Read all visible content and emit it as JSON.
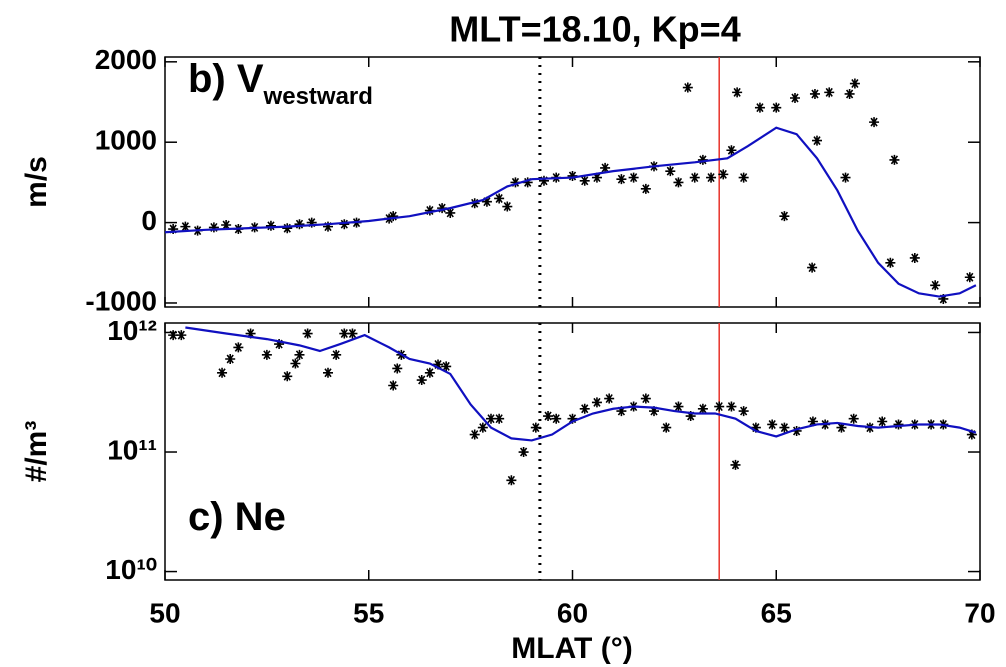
{
  "title": "MLT=18.10, Kp=4",
  "xlabel": "MLAT (°)",
  "chart_data": [
    {
      "type": "scatter",
      "label": "b) V",
      "label_sub": "westward",
      "ylabel": "m/s",
      "xlim": [
        50,
        70
      ],
      "xticks": [
        50,
        55,
        60,
        65,
        70
      ],
      "ylim": [
        -1050,
        2060
      ],
      "yticks": [
        -1000,
        0,
        1000,
        2000
      ],
      "log": false,
      "vlines": [
        {
          "x": 59.2,
          "color": "#000000",
          "dash": true
        },
        {
          "x": 63.6,
          "color": "#e8322a",
          "dash": false
        }
      ],
      "series": [
        {
          "type": "scatter",
          "color": "#000000",
          "x": [
            50.2,
            50.5,
            50.8,
            51.2,
            51.5,
            51.8,
            52.2,
            52.6,
            53.0,
            53.3,
            53.6,
            54.0,
            54.4,
            54.7,
            55.5,
            55.6,
            56.5,
            56.8,
            57.0,
            57.6,
            57.9,
            58.2,
            58.4,
            58.6,
            58.9,
            59.3,
            59.6,
            60.0,
            60.3,
            60.6,
            60.8,
            61.2,
            61.5,
            61.8,
            62.0,
            62.4,
            62.6,
            62.83,
            63.0,
            63.2,
            63.4,
            63.7,
            63.9,
            64.04,
            64.2,
            64.6,
            65.0,
            65.2,
            65.46,
            65.88,
            65.95,
            66.0,
            66.3,
            66.7,
            66.8,
            66.93,
            67.4,
            67.8,
            67.9,
            68.4,
            68.9,
            69.1,
            69.75
          ],
          "values": [
            -80,
            -50,
            -100,
            -60,
            -30,
            -80,
            -60,
            -40,
            -70,
            -20,
            0,
            -50,
            -20,
            0,
            50,
            80,
            150,
            180,
            120,
            240,
            260,
            300,
            200,
            500,
            500,
            520,
            560,
            580,
            520,
            560,
            680,
            540,
            560,
            420,
            700,
            640,
            500,
            1680,
            560,
            780,
            560,
            600,
            900,
            1620,
            560,
            1430,
            1430,
            80,
            1550,
            -560,
            1600,
            1020,
            1620,
            560,
            1600,
            1730,
            1250,
            -500,
            780,
            -440,
            -780,
            -950,
            -680
          ]
        },
        {
          "type": "line",
          "color": "#1010c0",
          "x": [
            50,
            51,
            52,
            53,
            54,
            55,
            56,
            57,
            57.8,
            58.4,
            59,
            60,
            61,
            62,
            63,
            63.8,
            64.3,
            65,
            65.5,
            66,
            66.5,
            67,
            67.5,
            68,
            68.5,
            69,
            69.5,
            69.9
          ],
          "values": [
            -120,
            -90,
            -70,
            -50,
            -20,
            20,
            80,
            180,
            280,
            450,
            540,
            560,
            640,
            700,
            750,
            800,
            950,
            1180,
            1100,
            800,
            400,
            -100,
            -500,
            -760,
            -880,
            -920,
            -880,
            -780
          ]
        }
      ]
    },
    {
      "type": "scatter",
      "label": "c) Ne",
      "ylabel": "#/m³",
      "xlim": [
        50,
        70
      ],
      "xticks": [
        50,
        55,
        60,
        65,
        70
      ],
      "ylim": [
        8500000000,
        1200000000000
      ],
      "log": true,
      "yticks": [
        {
          "value": 10000000000,
          "label": "10¹⁰"
        },
        {
          "value": 100000000000,
          "label": "10¹¹"
        },
        {
          "value": 1000000000000,
          "label": "10¹²"
        }
      ],
      "vlines": [
        {
          "x": 59.2,
          "color": "#000000",
          "dash": true
        },
        {
          "x": 63.6,
          "color": "#e8322a",
          "dash": false
        }
      ],
      "series": [
        {
          "type": "scatter",
          "color": "#000000",
          "x": [
            50.2,
            50.4,
            51.4,
            51.6,
            51.8,
            52.1,
            52.5,
            52.8,
            53.0,
            53.2,
            53.3,
            53.5,
            54.0,
            54.2,
            54.4,
            54.6,
            55.6,
            55.7,
            55.8,
            56.3,
            56.5,
            56.7,
            56.9,
            57.6,
            57.8,
            58.0,
            58.2,
            58.5,
            58.8,
            59.1,
            59.4,
            59.6,
            60.0,
            60.3,
            60.6,
            60.9,
            61.2,
            61.5,
            61.8,
            62.0,
            62.3,
            62.6,
            62.9,
            63.2,
            63.6,
            63.9,
            64.0,
            64.2,
            64.5,
            64.9,
            65.2,
            65.5,
            65.9,
            66.2,
            66.6,
            66.9,
            67.3,
            67.6,
            68.0,
            68.4,
            68.8,
            69.1,
            69.8
          ],
          "values": [
            950000000000,
            950000000000,
            460000000000,
            600000000000,
            750000000000,
            980000000000,
            650000000000,
            800000000000,
            430000000000,
            550000000000,
            650000000000,
            980000000000,
            460000000000,
            650000000000,
            980000000000,
            980000000000,
            360000000000,
            500000000000,
            650000000000,
            400000000000,
            460000000000,
            540000000000,
            520000000000,
            140000000000,
            160000000000,
            190000000000,
            190000000000,
            58000000000,
            100000000000,
            160000000000,
            200000000000,
            190000000000,
            190000000000,
            230000000000,
            260000000000,
            280000000000,
            220000000000,
            240000000000,
            280000000000,
            220000000000,
            160000000000,
            240000000000,
            200000000000,
            230000000000,
            240000000000,
            240000000000,
            78000000000,
            220000000000,
            160000000000,
            170000000000,
            160000000000,
            150000000000,
            180000000000,
            170000000000,
            160000000000,
            190000000000,
            160000000000,
            180000000000,
            170000000000,
            170000000000,
            170000000000,
            170000000000,
            140000000000
          ]
        },
        {
          "type": "line",
          "color": "#1010c0",
          "x": [
            50.5,
            51.5,
            52.5,
            53.3,
            53.8,
            54.3,
            54.9,
            55.5,
            56.0,
            56.5,
            57.0,
            57.5,
            58.0,
            58.5,
            59.0,
            59.5,
            60.0,
            60.5,
            61.0,
            61.5,
            62.0,
            62.5,
            63.0,
            63.5,
            64.0,
            64.5,
            65.0,
            65.5,
            66.0,
            66.5,
            67.0,
            67.5,
            68.0,
            68.5,
            69.0,
            69.5,
            69.9
          ],
          "values": [
            1100000000000,
            980000000000,
            880000000000,
            780000000000,
            700000000000,
            800000000000,
            950000000000,
            750000000000,
            600000000000,
            550000000000,
            450000000000,
            250000000000,
            160000000000,
            130000000000,
            125000000000,
            140000000000,
            180000000000,
            210000000000,
            230000000000,
            240000000000,
            235000000000,
            220000000000,
            210000000000,
            210000000000,
            190000000000,
            150000000000,
            135000000000,
            155000000000,
            170000000000,
            175000000000,
            165000000000,
            160000000000,
            165000000000,
            170000000000,
            170000000000,
            160000000000,
            145000000000
          ]
        }
      ]
    }
  ]
}
